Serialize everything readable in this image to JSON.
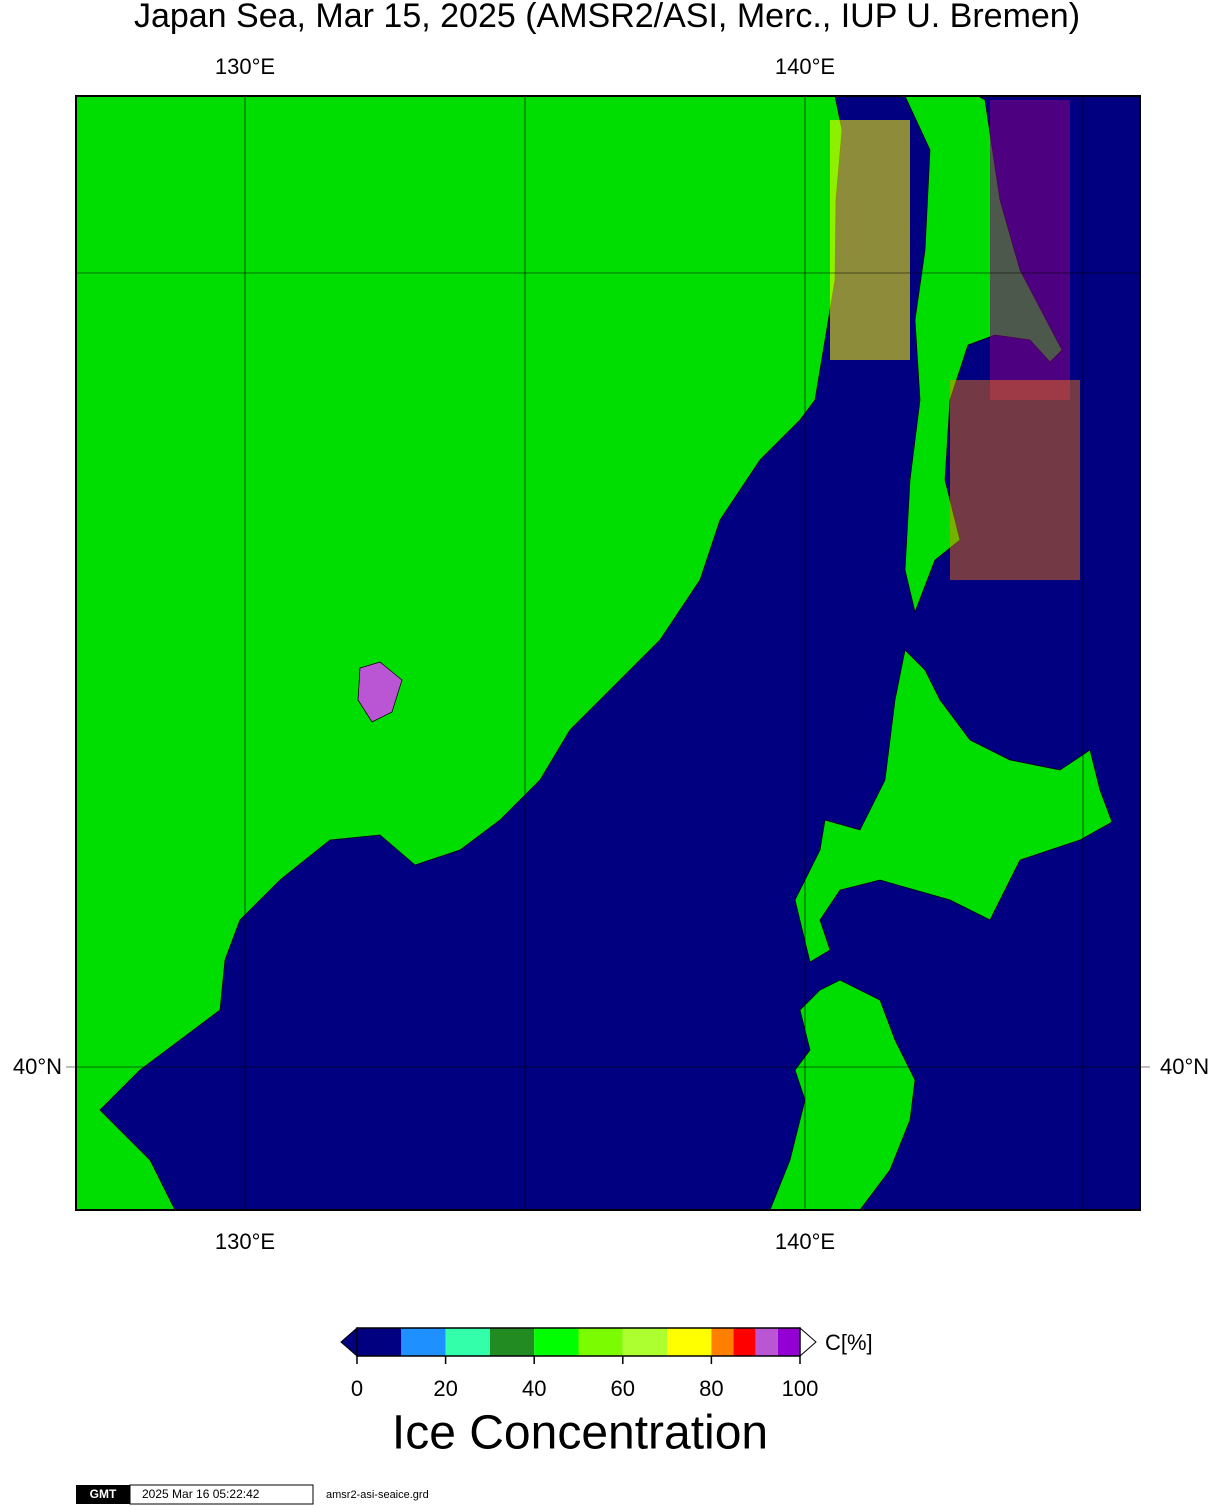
{
  "title": "Japan Sea, Mar 15, 2025 (AMSR2/ASI, Merc., IUP U. Bremen)",
  "map": {
    "lon_labels": [
      "130°E",
      "140°E"
    ],
    "lat_labels": [
      "40°N"
    ]
  },
  "colorbar": {
    "unit_label": "C[%]",
    "title": "Ice Concentration",
    "ticks": [
      0,
      20,
      40,
      60,
      80,
      100
    ],
    "bounds": [
      0,
      10,
      20,
      30,
      40,
      50,
      60,
      70,
      80,
      85,
      90,
      95,
      100
    ],
    "colors": [
      "#000080",
      "#1e90ff",
      "#33ffaa",
      "#228b22",
      "#00ff00",
      "#7cfc00",
      "#adff2f",
      "#ffff00",
      "#ff8000",
      "#ff0000",
      "#ba55d3",
      "#9400d3"
    ]
  },
  "footer": {
    "logo": "GMT",
    "timestamp": "2025 Mar 16 05:22:42",
    "file": "amsr2-asi-seaice.grd"
  }
}
